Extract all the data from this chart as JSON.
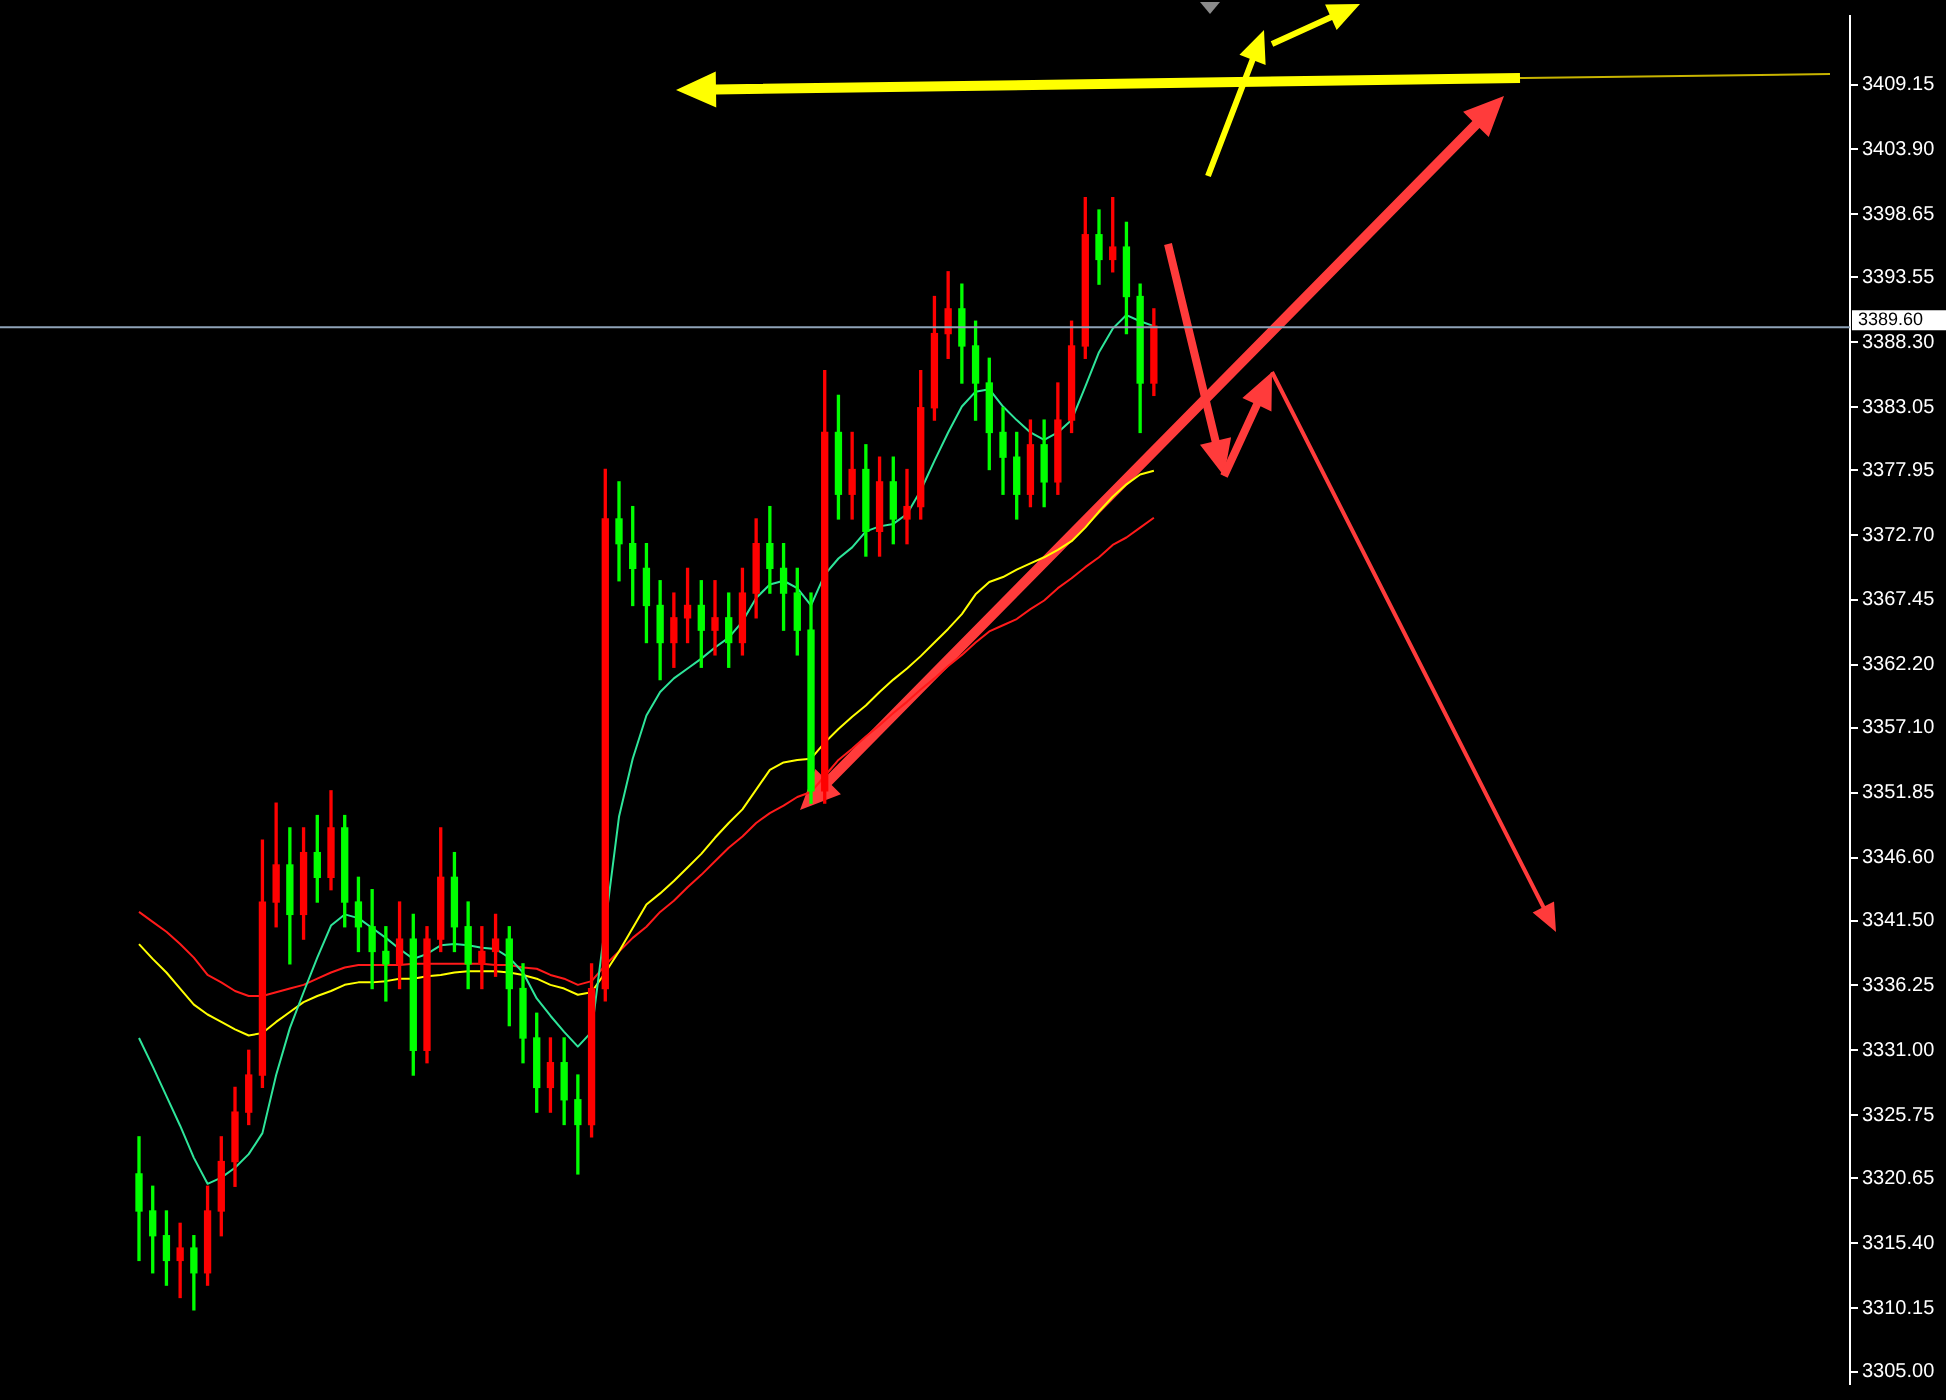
{
  "chart_data": {
    "type": "candlestick",
    "categories": [
      null,
      null,
      null,
      null,
      null,
      null,
      null,
      null,
      null,
      null,
      null,
      null,
      null,
      null,
      null,
      null,
      null,
      null,
      null,
      null,
      null,
      null,
      null,
      null,
      null,
      null,
      null,
      null,
      null,
      null,
      null,
      null,
      null,
      null,
      null,
      null,
      null,
      null,
      null,
      null,
      null,
      null,
      null,
      null,
      null,
      null,
      null,
      null,
      null,
      null,
      null,
      null,
      null,
      null,
      null,
      null,
      null,
      null,
      null,
      null,
      null,
      null,
      null,
      null,
      null,
      null,
      null,
      null,
      null,
      null,
      null,
      null,
      null,
      null,
      null
    ],
    "ohlc": [
      [
        3321,
        3324,
        3314,
        3318
      ],
      [
        3318,
        3320,
        3313,
        3316
      ],
      [
        3316,
        3318,
        3312,
        3314
      ],
      [
        3314,
        3317,
        3311,
        3315
      ],
      [
        3315,
        3316,
        3310,
        3313
      ],
      [
        3313,
        3320,
        3312,
        3318
      ],
      [
        3318,
        3324,
        3316,
        3322
      ],
      [
        3322,
        3328,
        3320,
        3326
      ],
      [
        3326,
        3331,
        3325,
        3329
      ],
      [
        3329,
        3348,
        3328,
        3343
      ],
      [
        3343,
        3351,
        3341,
        3346
      ],
      [
        3346,
        3349,
        3338,
        3342
      ],
      [
        3342,
        3349,
        3340,
        3347
      ],
      [
        3347,
        3350,
        3343,
        3345
      ],
      [
        3345,
        3352,
        3344,
        3349
      ],
      [
        3349,
        3350,
        3341,
        3343
      ],
      [
        3343,
        3345,
        3339,
        3341
      ],
      [
        3341,
        3344,
        3336,
        3339
      ],
      [
        3339,
        3341,
        3335,
        3338
      ],
      [
        3338,
        3343,
        3336,
        3340
      ],
      [
        3340,
        3342,
        3329,
        3331
      ],
      [
        3331,
        3341,
        3330,
        3340
      ],
      [
        3340,
        3349,
        3339,
        3345
      ],
      [
        3345,
        3347,
        3339,
        3341
      ],
      [
        3341,
        3343,
        3336,
        3338
      ],
      [
        3338,
        3341,
        3336,
        3339
      ],
      [
        3339,
        3342,
        3337,
        3340
      ],
      [
        3340,
        3341,
        3333,
        3336
      ],
      [
        3336,
        3338,
        3330,
        3332
      ],
      [
        3332,
        3334,
        3326,
        3328
      ],
      [
        3328,
        3332,
        3326,
        3330
      ],
      [
        3330,
        3332,
        3325,
        3327
      ],
      [
        3327,
        3329,
        3321,
        3325
      ],
      [
        3325,
        3338,
        3324,
        3336
      ],
      [
        3336,
        3378,
        3335,
        3374
      ],
      [
        3374,
        3377,
        3369,
        3372
      ],
      [
        3372,
        3375,
        3367,
        3370
      ],
      [
        3370,
        3372,
        3364,
        3367
      ],
      [
        3367,
        3369,
        3361,
        3364
      ],
      [
        3364,
        3368,
        3362,
        3366
      ],
      [
        3366,
        3370,
        3364,
        3367
      ],
      [
        3367,
        3369,
        3362,
        3365
      ],
      [
        3365,
        3369,
        3363,
        3366
      ],
      [
        3366,
        3368,
        3362,
        3364
      ],
      [
        3364,
        3370,
        3363,
        3368
      ],
      [
        3368,
        3374,
        3366,
        3372
      ],
      [
        3372,
        3375,
        3368,
        3370
      ],
      [
        3370,
        3372,
        3365,
        3368
      ],
      [
        3368,
        3370,
        3363,
        3365
      ],
      [
        3365,
        3368,
        3351,
        3352
      ],
      [
        3352,
        3386,
        3351,
        3381
      ],
      [
        3381,
        3384,
        3374,
        3376
      ],
      [
        3376,
        3381,
        3374,
        3378
      ],
      [
        3378,
        3380,
        3371,
        3373
      ],
      [
        3373,
        3379,
        3371,
        3377
      ],
      [
        3377,
        3379,
        3372,
        3374
      ],
      [
        3374,
        3378,
        3372,
        3375
      ],
      [
        3375,
        3386,
        3374,
        3383
      ],
      [
        3383,
        3392,
        3382,
        3389
      ],
      [
        3389,
        3394,
        3387,
        3391
      ],
      [
        3391,
        3393,
        3385,
        3388
      ],
      [
        3388,
        3390,
        3382,
        3385
      ],
      [
        3385,
        3387,
        3378,
        3381
      ],
      [
        3381,
        3383,
        3376,
        3379
      ],
      [
        3379,
        3381,
        3374,
        3376
      ],
      [
        3376,
        3382,
        3375,
        3380
      ],
      [
        3380,
        3382,
        3375,
        3377
      ],
      [
        3377,
        3385,
        3376,
        3382
      ],
      [
        3382,
        3390,
        3381,
        3388
      ],
      [
        3388,
        3400,
        3387,
        3397
      ],
      [
        3397,
        3399,
        3393,
        3395
      ],
      [
        3395,
        3400,
        3394,
        3396
      ],
      [
        3396,
        3398,
        3389,
        3392
      ],
      [
        3392,
        3393,
        3381,
        3385
      ],
      [
        3385,
        3391,
        3384,
        3389.6
      ]
    ],
    "colors": [
      "#00ff00",
      "#00ff00",
      "#00ff00",
      "#ff0000",
      "#00ff00",
      "#ff0000",
      "#ff0000",
      "#ff0000",
      "#ff0000",
      "#ff0000",
      "#ff0000",
      "#00ff00",
      "#ff0000",
      "#00ff00",
      "#ff0000",
      "#00ff00",
      "#00ff00",
      "#00ff00",
      "#00ff00",
      "#ff0000",
      "#00ff00",
      "#ff0000",
      "#ff0000",
      "#00ff00",
      "#00ff00",
      "#ff0000",
      "#ff0000",
      "#00ff00",
      "#00ff00",
      "#00ff00",
      "#ff0000",
      "#00ff00",
      "#00ff00",
      "#ff0000",
      "#ff0000",
      "#00ff00",
      "#00ff00",
      "#00ff00",
      "#00ff00",
      "#ff0000",
      "#ff0000",
      "#00ff00",
      "#ff0000",
      "#00ff00",
      "#ff0000",
      "#ff0000",
      "#00ff00",
      "#00ff00",
      "#00ff00",
      "#00ff00",
      "#ff0000",
      "#00ff00",
      "#ff0000",
      "#00ff00",
      "#ff0000",
      "#00ff00",
      "#ff0000",
      "#ff0000",
      "#ff0000",
      "#ff0000",
      "#00ff00",
      "#00ff00",
      "#00ff00",
      "#00ff00",
      "#00ff00",
      "#ff0000",
      "#00ff00",
      "#ff0000",
      "#ff0000",
      "#ff0000",
      "#00ff00",
      "#ff0000",
      "#00ff00",
      "#00ff00",
      "#ff0000"
    ],
    "series": [
      {
        "type": "line",
        "color": "#2ee59a",
        "values": [
          3332.0,
          3329.7,
          3327.3,
          3324.9,
          3322.3,
          3320.2,
          3320.7,
          3321.5,
          3322.6,
          3324.3,
          3329.0,
          3332.8,
          3335.7,
          3338.5,
          3341.1,
          3342.0,
          3341.7,
          3340.9,
          3340.1,
          3339.2,
          3338.4,
          3338.8,
          3339.5,
          3339.6,
          3339.5,
          3339.3,
          3339.2,
          3338.5,
          3337.3,
          3335.2,
          3333.8,
          3332.5,
          3331.3,
          3332.5,
          null,
          3349.9,
          3354.6,
          3358.1,
          3360.0,
          3361.1,
          3361.9,
          3362.7,
          3363.6,
          3364.4,
          3365.7,
          3367.6,
          3368.7,
          3369.0,
          3368.4,
          3367.0,
          3369.5,
          3370.8,
          3371.7,
          3373.0,
          3373.4,
          3373.6,
          3374.4,
          3376.3,
          3378.7,
          3381.0,
          3383.1,
          3384.3,
          3384.5,
          3383.1,
          3382.0,
          3381.0,
          3380.4,
          3381.0,
          3382.0,
          3384.7,
          3387.5,
          3389.4,
          3390.5,
          3390.0,
          3389.6
        ]
      },
      {
        "type": "line",
        "color": "#ffff00",
        "values": [
          3339.6,
          3338.4,
          3337.3,
          3336.0,
          3334.7,
          3333.9,
          3333.3,
          3332.7,
          3332.2,
          3332.4,
          3333.3,
          3334.1,
          3334.9,
          3335.4,
          3335.8,
          3336.3,
          3336.5,
          3336.5,
          3336.6,
          3336.8,
          3336.8,
          3337.0,
          3337.1,
          3337.3,
          3337.4,
          3337.4,
          3337.4,
          3337.3,
          3337.1,
          3336.8,
          3336.3,
          3336.0,
          3335.5,
          3335.7,
          3337.3,
          3339.0,
          3340.9,
          3342.8,
          3343.7,
          3344.7,
          3345.8,
          3346.9,
          3348.2,
          3349.4,
          3350.5,
          3352.1,
          3353.7,
          3354.3,
          3354.5,
          3354.6,
          3355.9,
          3357.0,
          3358.0,
          3358.9,
          3360.0,
          3361.0,
          3361.9,
          3362.9,
          3364.0,
          3365.1,
          3366.3,
          3367.9,
          3368.9,
          3369.3,
          3369.9,
          3370.4,
          3370.9,
          3371.5,
          3372.2,
          3373.3,
          3374.6,
          3375.8,
          3376.8,
          3377.6,
          3377.9
        ]
      },
      {
        "type": "line",
        "color": "#ff1a1a",
        "values": [
          3342.2,
          3341.4,
          3340.6,
          3339.6,
          3338.5,
          3337.1,
          3336.5,
          3335.8,
          3335.4,
          3335.4,
          3335.7,
          3336.0,
          3336.3,
          3336.8,
          3337.3,
          3337.7,
          3337.9,
          3337.9,
          3337.9,
          3337.9,
          3338.0,
          3338.0,
          3338.0,
          3338.0,
          3338.0,
          3338.0,
          3337.9,
          3337.9,
          3337.7,
          3337.6,
          3337.1,
          3336.8,
          3336.3,
          3336.6,
          3337.9,
          3339.0,
          3340.1,
          3341.0,
          3342.2,
          3343.1,
          3344.2,
          3345.2,
          3346.3,
          3347.4,
          3348.3,
          3349.4,
          3350.2,
          3350.8,
          3351.5,
          3351.9,
          3353.2,
          3354.5,
          3355.4,
          3356.4,
          3357.3,
          3358.3,
          3359.2,
          3360.2,
          3361.1,
          3362.1,
          3363.0,
          3364.0,
          3364.9,
          3365.4,
          3365.9,
          3366.7,
          3367.4,
          3368.4,
          3369.2,
          3370.1,
          3370.9,
          3371.9,
          3372.5,
          3373.3,
          3374.1
        ]
      }
    ],
    "ylim": [
      3304.0,
      3414.7
    ],
    "yticks": [
      3409.15,
      {
        "value": 3403.9,
        "label": "3403.90"
      },
      3398.65,
      3393.55,
      {
        "value": 3388.3,
        "label": "3388.30"
      },
      3383.05,
      3377.95,
      {
        "value": 3372.7,
        "label": "3372.70"
      },
      3367.45,
      {
        "value": 3362.2,
        "label": "3362.20"
      },
      {
        "value": 3357.1,
        "label": "3357.10"
      },
      3351.85,
      {
        "value": 3346.6,
        "label": "3346.60"
      },
      {
        "value": 3341.5,
        "label": "3341.50"
      },
      3336.25,
      {
        "value": 3331,
        "label": "3331.00"
      },
      3325.75,
      3320.65,
      {
        "value": 3315.4,
        "label": "3315.40"
      },
      3310.15,
      {
        "value": 3305,
        "label": "3305.00"
      }
    ],
    "ref_lines": [
      {
        "axis": "y",
        "value": 3389.6,
        "label": "3389.60",
        "color": "#8fa3b8"
      }
    ],
    "tick_labels": "y",
    "legend": false
  }
}
